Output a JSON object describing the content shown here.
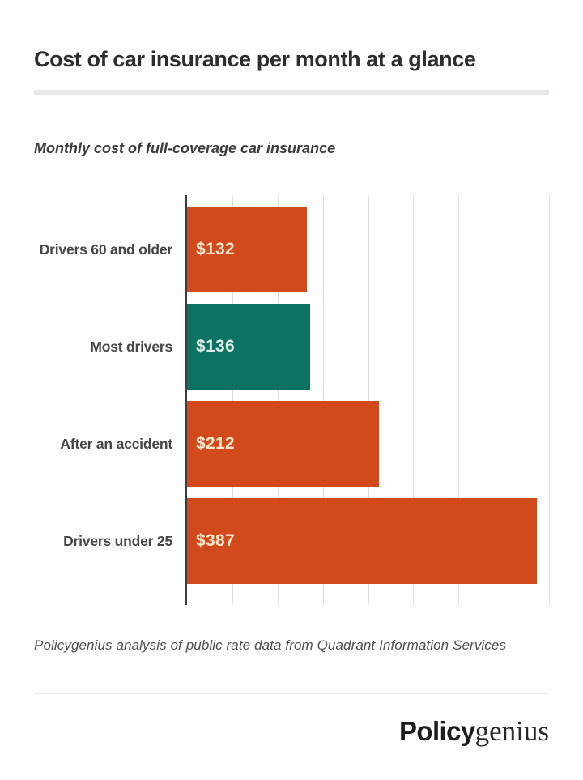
{
  "page": {
    "title": "Cost of car insurance per month at a glance",
    "subtitle": "Monthly cost of full-coverage car insurance",
    "source_note": "Policygenius analysis of public rate data from Quadrant Information Services",
    "logo": {
      "bold_part": "Policy",
      "serif_part": "genius"
    }
  },
  "colors": {
    "orange": "#d24a1c",
    "teal": "#0e7263",
    "value_text_on_orange": "#f7e5cb",
    "value_text_on_teal": "#daede6",
    "axis": "#383e40",
    "gridline": "#e0ddda",
    "divider": "#e9e7e4",
    "title_text": "#2d2d2d",
    "category_text": "#474747"
  },
  "chart_data": {
    "type": "bar",
    "orientation": "horizontal",
    "title": "Monthly cost of full-coverage car insurance",
    "categories": [
      "Drivers 60 and older",
      "Most drivers",
      "After an accident",
      "Drivers under 25"
    ],
    "values": [
      132,
      136,
      212,
      387
    ],
    "value_labels": [
      "$132",
      "$136",
      "$212",
      "$387"
    ],
    "bar_colors": [
      "#d24a1c",
      "#0e7263",
      "#d24a1c",
      "#d24a1c"
    ],
    "value_label_colors": [
      "#f7e5cb",
      "#daede6",
      "#f7e5cb",
      "#f7e5cb"
    ],
    "xlabel": "",
    "ylabel": "",
    "xlim": [
      0,
      400
    ],
    "gridline_step": 50,
    "grid": "vertical-only",
    "axis_tick_labels_visible": false,
    "legend": "none",
    "source": "Policygenius analysis of public rate data from Quadrant Information Services"
  }
}
